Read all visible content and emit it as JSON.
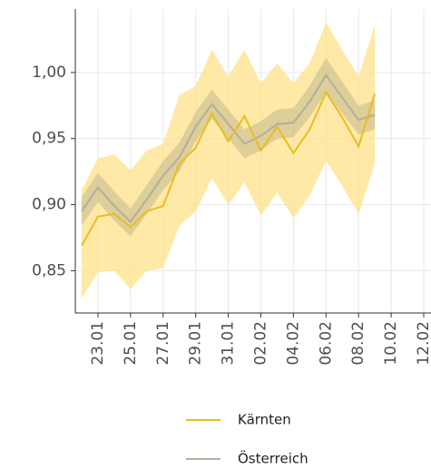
{
  "chart_data": {
    "type": "line",
    "x": [
      "22.01",
      "23.01",
      "24.01",
      "25.01",
      "26.01",
      "27.01",
      "28.01",
      "29.01",
      "30.01",
      "31.01",
      "01.02",
      "02.02",
      "03.02",
      "04.02",
      "05.02",
      "06.02",
      "07.02",
      "08.02",
      "09.02"
    ],
    "series": [
      {
        "name": "Kärnten",
        "color": "#e9bd1f",
        "band_color": "#fde28a",
        "values": [
          0.869,
          0.891,
          0.893,
          0.883,
          0.895,
          0.899,
          0.931,
          0.943,
          0.969,
          0.948,
          0.967,
          0.941,
          0.959,
          0.939,
          0.957,
          0.985,
          0.966,
          0.944,
          0.984
        ],
        "upper": [
          0.911,
          0.935,
          0.938,
          0.926,
          0.941,
          0.946,
          0.983,
          0.99,
          1.017,
          0.997,
          1.017,
          0.992,
          1.007,
          0.992,
          1.007,
          1.038,
          1.017,
          0.997,
          1.036
        ],
        "lower": [
          0.829,
          0.849,
          0.85,
          0.836,
          0.85,
          0.852,
          0.884,
          0.895,
          0.92,
          0.9,
          0.917,
          0.892,
          0.909,
          0.89,
          0.907,
          0.933,
          0.914,
          0.893,
          0.931
        ]
      },
      {
        "name": "Österreich",
        "color": "#b3ae9c",
        "band_color": "#b5ad8c",
        "values": [
          0.895,
          0.913,
          0.899,
          0.887,
          0.904,
          0.922,
          0.936,
          0.959,
          0.976,
          0.961,
          0.946,
          0.952,
          0.961,
          0.962,
          0.978,
          0.998,
          0.981,
          0.964,
          0.968
        ],
        "upper": [
          0.906,
          0.924,
          0.91,
          0.897,
          0.915,
          0.933,
          0.947,
          0.97,
          0.987,
          0.972,
          0.957,
          0.963,
          0.972,
          0.973,
          0.99,
          1.011,
          0.993,
          0.975,
          0.979
        ],
        "lower": [
          0.884,
          0.902,
          0.888,
          0.876,
          0.893,
          0.911,
          0.925,
          0.948,
          0.965,
          0.95,
          0.935,
          0.941,
          0.95,
          0.951,
          0.966,
          0.985,
          0.969,
          0.953,
          0.957
        ]
      }
    ],
    "xlim": [
      "22.01",
      "12.02"
    ],
    "xticks": [
      "23.01",
      "25.01",
      "27.01",
      "29.01",
      "31.01",
      "02.02",
      "04.02",
      "06.02",
      "08.02",
      "10.02",
      "12.02"
    ],
    "ylim": [
      0.818,
      1.048
    ],
    "yticks": [
      {
        "value": 0.85,
        "label": "0,85"
      },
      {
        "value": 0.9,
        "label": "0,90"
      },
      {
        "value": 0.95,
        "label": "0,95"
      },
      {
        "value": 1.0,
        "label": "1,00"
      }
    ],
    "grid": true
  }
}
